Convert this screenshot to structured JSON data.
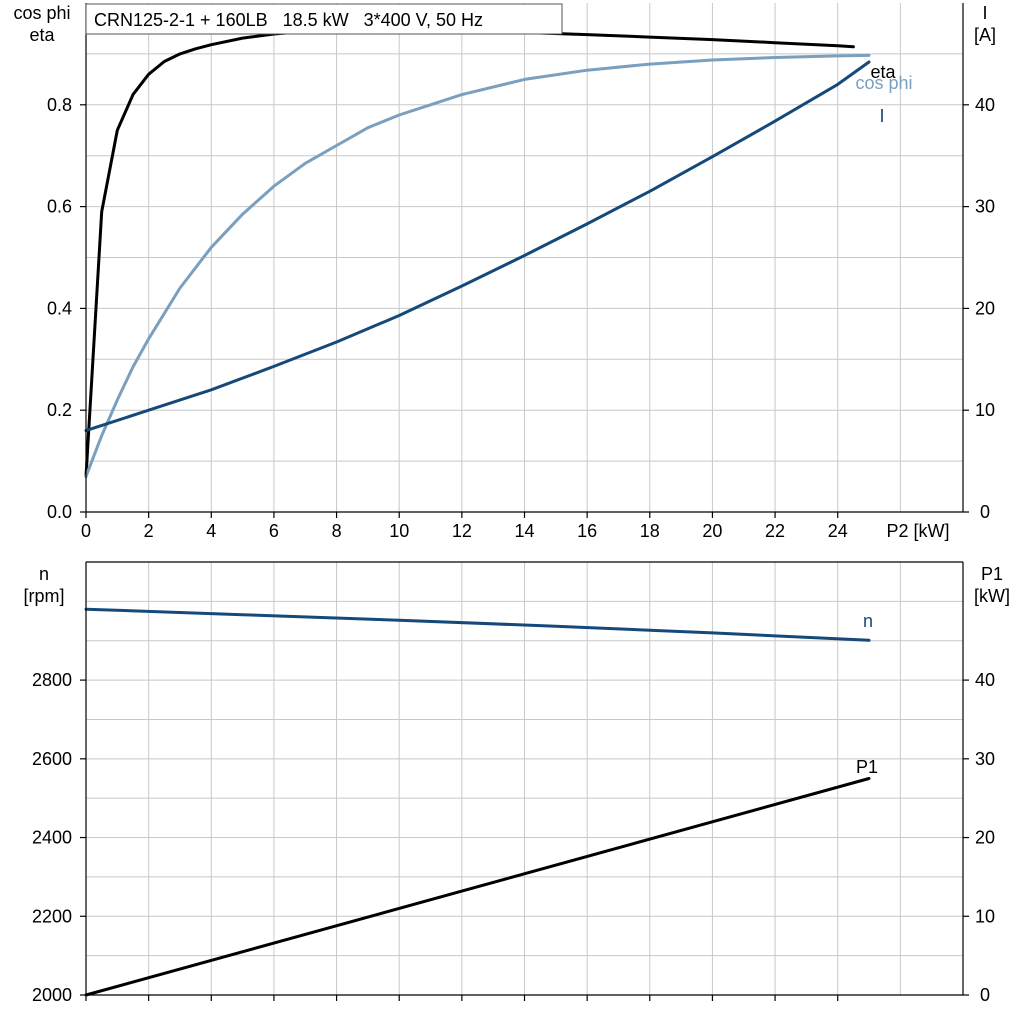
{
  "header": {
    "title": "CRN125-2-1 + 160LB   18.5 kW   3*400 V, 50 Hz"
  },
  "colors": {
    "eta": "#000000",
    "cos_phi": "#7a9fbf",
    "current": "#14497a",
    "speed": "#14497a",
    "p1": "#000000",
    "grid": "#c8c8c8"
  },
  "chart_data": [
    {
      "type": "line",
      "x_axis": {
        "title": "P2 [kW]",
        "range": [
          0,
          28
        ],
        "ticks": [
          0,
          2,
          4,
          6,
          8,
          10,
          12,
          14,
          16,
          18,
          20,
          22,
          24
        ]
      },
      "y_left": {
        "title_lines": [
          "cos phi",
          "eta"
        ],
        "range": [
          0,
          1.0
        ],
        "ticks": [
          0.0,
          0.2,
          0.4,
          0.6,
          0.8
        ],
        "tick_labels": [
          "0.0",
          "0.2",
          "0.4",
          "0.6",
          "0.8"
        ]
      },
      "y_right": {
        "title_lines": [
          "I",
          "[A]"
        ],
        "range": [
          0,
          50
        ],
        "ticks": [
          0,
          10,
          20,
          30,
          40
        ]
      },
      "grid": true,
      "series": [
        {
          "name": "eta",
          "axis": "left",
          "color_key": "eta",
          "x": [
            0,
            0.5,
            1,
            1.5,
            2,
            2.5,
            3,
            3.5,
            4,
            5,
            6,
            7,
            8,
            9,
            10,
            12,
            14,
            16,
            18,
            20,
            22,
            24,
            24.5
          ],
          "y": [
            0.07,
            0.59,
            0.75,
            0.82,
            0.86,
            0.885,
            0.9,
            0.91,
            0.918,
            0.931,
            0.939,
            0.944,
            0.946,
            0.947,
            0.947,
            0.945,
            0.942,
            0.938,
            0.933,
            0.928,
            0.922,
            0.916,
            0.914
          ]
        },
        {
          "name": "cos phi",
          "axis": "left",
          "color_key": "cos_phi",
          "x": [
            0,
            0.5,
            1,
            1.5,
            2,
            3,
            4,
            5,
            6,
            7,
            8,
            9,
            10,
            11,
            12,
            14,
            16,
            18,
            20,
            22,
            24,
            25
          ],
          "y": [
            0.07,
            0.15,
            0.22,
            0.285,
            0.34,
            0.44,
            0.52,
            0.585,
            0.64,
            0.685,
            0.72,
            0.755,
            0.78,
            0.8,
            0.82,
            0.85,
            0.868,
            0.88,
            0.888,
            0.893,
            0.896,
            0.897
          ]
        },
        {
          "name": "I",
          "axis": "right",
          "color_key": "current",
          "x": [
            0,
            2,
            4,
            6,
            8,
            10,
            12,
            14,
            16,
            18,
            20,
            22,
            24,
            25
          ],
          "y": [
            8.0,
            10.0,
            12.0,
            14.3,
            16.7,
            19.3,
            22.2,
            25.2,
            28.3,
            31.5,
            34.9,
            38.4,
            42.0,
            44.2
          ]
        }
      ]
    },
    {
      "type": "line",
      "x_axis": {
        "range": [
          0,
          28
        ],
        "ticks": [
          0,
          2,
          4,
          6,
          8,
          10,
          12,
          14,
          16,
          18,
          20,
          22,
          24
        ]
      },
      "y_left": {
        "title_lines": [
          "n",
          "[rpm]"
        ],
        "range": [
          2000,
          3100
        ],
        "ticks": [
          2000,
          2200,
          2400,
          2600,
          2800
        ]
      },
      "y_right": {
        "title_lines": [
          "P1",
          "[kW]"
        ],
        "range": [
          0,
          55
        ],
        "ticks": [
          0,
          10,
          20,
          30,
          40
        ]
      },
      "grid": true,
      "series": [
        {
          "name": "n",
          "axis": "left",
          "color_key": "speed",
          "x": [
            0,
            5,
            10,
            15,
            20,
            25
          ],
          "y": [
            2980,
            2966,
            2952,
            2937,
            2920,
            2901
          ]
        },
        {
          "name": "P1",
          "axis": "right",
          "color_key": "p1",
          "x": [
            0,
            25
          ],
          "y": [
            0.0,
            27.5
          ]
        }
      ]
    }
  ]
}
